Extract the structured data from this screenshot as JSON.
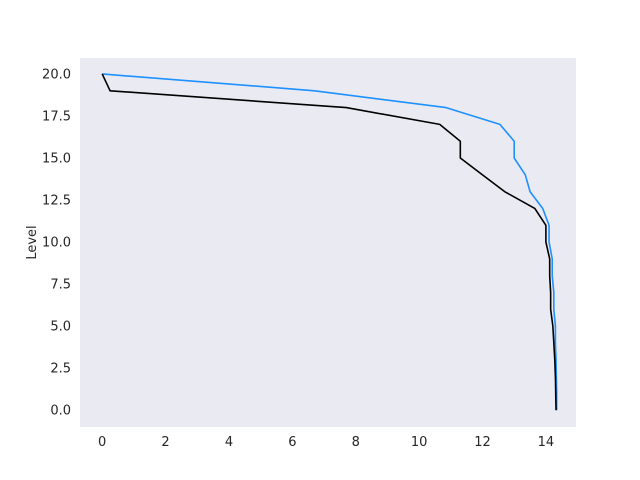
{
  "chart_data": {
    "type": "line",
    "title": "",
    "xlabel": "",
    "ylabel": "Level",
    "xlim": [
      -0.7,
      14.95
    ],
    "ylim": [
      -1.0,
      20.95
    ],
    "x_ticks": [
      0,
      2,
      4,
      6,
      8,
      10,
      12,
      14
    ],
    "x_tick_labels": [
      "0",
      "2",
      "4",
      "6",
      "8",
      "10",
      "12",
      "14"
    ],
    "y_ticks": [
      0.0,
      2.5,
      5.0,
      7.5,
      10.0,
      12.5,
      15.0,
      17.5,
      20.0
    ],
    "y_tick_labels": [
      "0.0",
      "2.5",
      "5.0",
      "7.5",
      "10.0",
      "12.5",
      "15.0",
      "17.5",
      "20.0"
    ],
    "grid": false,
    "background_color": "#eaeaf2",
    "series": [
      {
        "color": "#1e90ff",
        "points": [
          [
            0.0,
            20
          ],
          [
            6.7,
            19
          ],
          [
            10.85,
            18
          ],
          [
            12.55,
            17
          ],
          [
            13.0,
            16
          ],
          [
            13.0,
            15
          ],
          [
            13.35,
            14
          ],
          [
            13.5,
            13
          ],
          [
            13.9,
            12
          ],
          [
            14.1,
            11
          ],
          [
            14.1,
            10
          ],
          [
            14.2,
            9
          ],
          [
            14.2,
            8
          ],
          [
            14.25,
            7
          ],
          [
            14.25,
            6
          ],
          [
            14.3,
            5
          ],
          [
            14.3,
            4
          ],
          [
            14.32,
            3
          ],
          [
            14.33,
            2
          ],
          [
            14.34,
            1
          ],
          [
            14.34,
            0
          ]
        ]
      },
      {
        "color": "#000000",
        "points": [
          [
            0.0,
            20
          ],
          [
            0.25,
            19
          ],
          [
            7.7,
            18
          ],
          [
            10.65,
            17
          ],
          [
            11.3,
            16
          ],
          [
            11.3,
            15
          ],
          [
            12.0,
            14
          ],
          [
            12.7,
            13
          ],
          [
            13.65,
            12
          ],
          [
            14.0,
            11
          ],
          [
            14.0,
            10
          ],
          [
            14.12,
            9
          ],
          [
            14.12,
            8
          ],
          [
            14.15,
            7
          ],
          [
            14.15,
            6
          ],
          [
            14.22,
            5
          ],
          [
            14.25,
            4
          ],
          [
            14.28,
            3
          ],
          [
            14.3,
            2
          ],
          [
            14.31,
            1
          ],
          [
            14.32,
            0
          ]
        ]
      }
    ]
  }
}
